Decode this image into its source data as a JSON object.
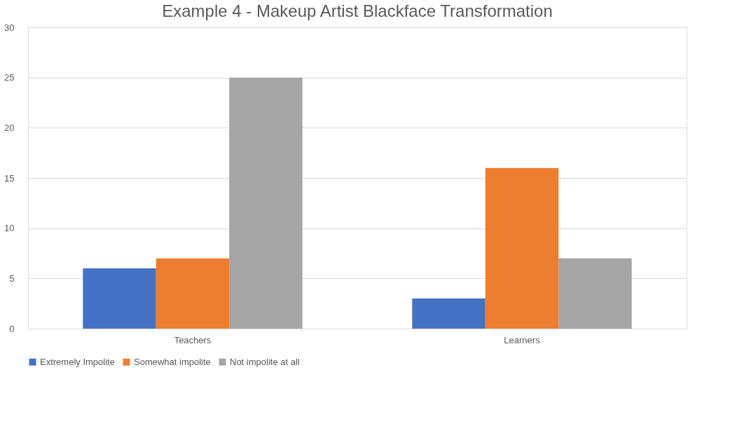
{
  "chart_data": {
    "type": "bar",
    "title": "Example 4 - Makeup Artist Blackface Transformation",
    "categories": [
      "Teachers",
      "Learners"
    ],
    "series": [
      {
        "name": "Extremely Impolite",
        "color": "#4472c4",
        "values": [
          6,
          3
        ]
      },
      {
        "name": "Somewhat impolite",
        "color": "#ed7d31",
        "values": [
          7,
          16
        ]
      },
      {
        "name": "Not impolite at all",
        "color": "#a5a5a5",
        "values": [
          25,
          7
        ]
      }
    ],
    "ylim": [
      0,
      30
    ],
    "yticks": [
      0,
      5,
      10,
      15,
      20,
      25,
      30
    ],
    "grid": "y",
    "legend": "bottom"
  }
}
